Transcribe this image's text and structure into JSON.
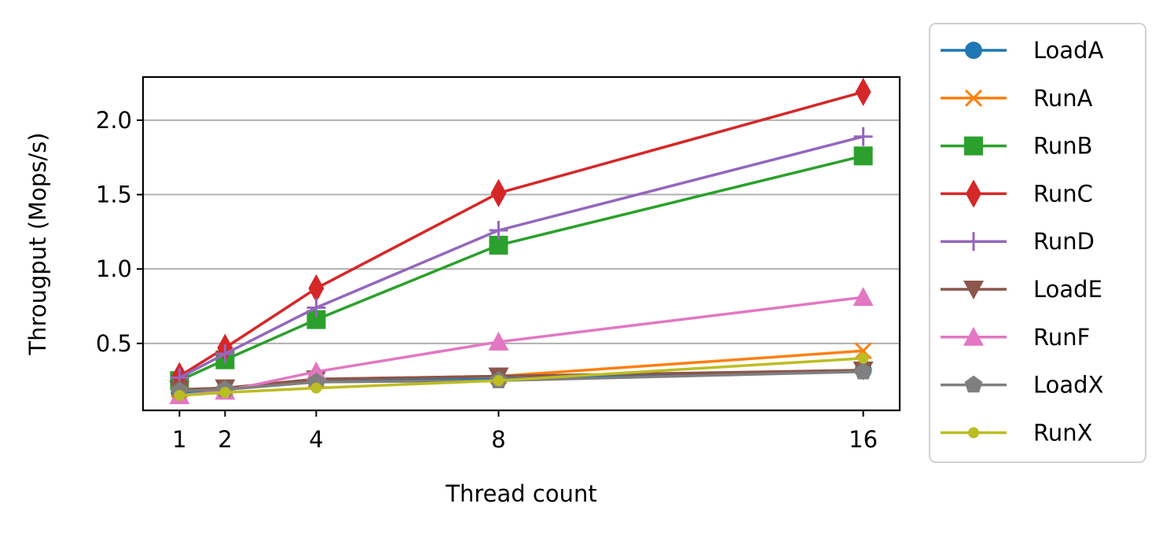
{
  "chart_data": {
    "type": "line",
    "title": "",
    "xlabel": "Thread count",
    "ylabel": "Througput (Mops/s)",
    "x": [
      1,
      2,
      4,
      8,
      16
    ],
    "x_ticks": [
      "1",
      "2",
      "4",
      "8",
      "16"
    ],
    "y_ticks": [
      "0.5",
      "1.0",
      "1.5",
      "2.0"
    ],
    "xlim": [
      0.2,
      16.8
    ],
    "ylim": [
      0.05,
      2.29
    ],
    "grid": "horizontal",
    "legend_position": "outside-right",
    "series": [
      {
        "name": "LoadA",
        "values": [
          0.17,
          0.19,
          0.25,
          0.26,
          0.32
        ],
        "color": "#1f77b4",
        "marker": "circle"
      },
      {
        "name": "RunA",
        "values": [
          0.19,
          0.2,
          0.26,
          0.28,
          0.45
        ],
        "color": "#ff7f0e",
        "marker": "x"
      },
      {
        "name": "RunB",
        "values": [
          0.25,
          0.39,
          0.66,
          1.16,
          1.76
        ],
        "color": "#2ca02c",
        "marker": "square"
      },
      {
        "name": "RunC",
        "values": [
          0.28,
          0.47,
          0.87,
          1.51,
          2.19
        ],
        "color": "#d62728",
        "marker": "diamond"
      },
      {
        "name": "RunD",
        "values": [
          0.27,
          0.43,
          0.74,
          1.26,
          1.89
        ],
        "color": "#9467bd",
        "marker": "plus"
      },
      {
        "name": "LoadE",
        "values": [
          0.19,
          0.2,
          0.26,
          0.28,
          0.32
        ],
        "color": "#8c564b",
        "marker": "triangle-down"
      },
      {
        "name": "RunF",
        "values": [
          0.15,
          0.18,
          0.31,
          0.51,
          0.81
        ],
        "color": "#e377c2",
        "marker": "triangle-up"
      },
      {
        "name": "LoadX",
        "values": [
          0.18,
          0.19,
          0.24,
          0.25,
          0.31
        ],
        "color": "#7f7f7f",
        "marker": "pentagon"
      },
      {
        "name": "RunX",
        "values": [
          0.15,
          0.17,
          0.2,
          0.25,
          0.4
        ],
        "color": "#bcbd22",
        "marker": "small-circle"
      }
    ]
  }
}
